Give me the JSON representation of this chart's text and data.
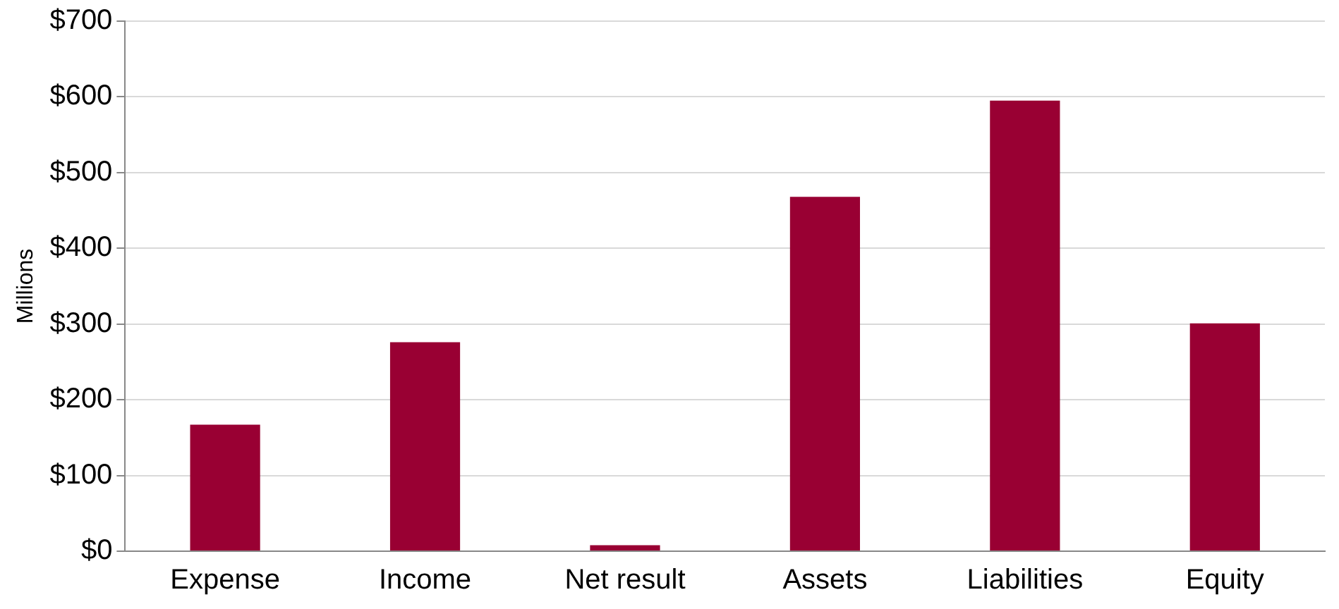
{
  "chart_data": {
    "type": "bar",
    "ylabel": "Millions",
    "categories": [
      "Expense",
      "Income",
      "Net result",
      "Assets",
      "Liabilities",
      "Equity"
    ],
    "values": [
      167,
      276,
      8,
      468,
      595,
      301
    ],
    "color": "#990033",
    "ylim": [
      0,
      700
    ],
    "yticks": [
      {
        "value": 0,
        "label": "$0"
      },
      {
        "value": 100,
        "label": "$100"
      },
      {
        "value": 200,
        "label": "$200"
      },
      {
        "value": 300,
        "label": "$300"
      },
      {
        "value": 400,
        "label": "$400"
      },
      {
        "value": 500,
        "label": "$500"
      },
      {
        "value": 600,
        "label": "$600"
      },
      {
        "value": 700,
        "label": "$700"
      }
    ],
    "grid": "y",
    "legend": false
  }
}
